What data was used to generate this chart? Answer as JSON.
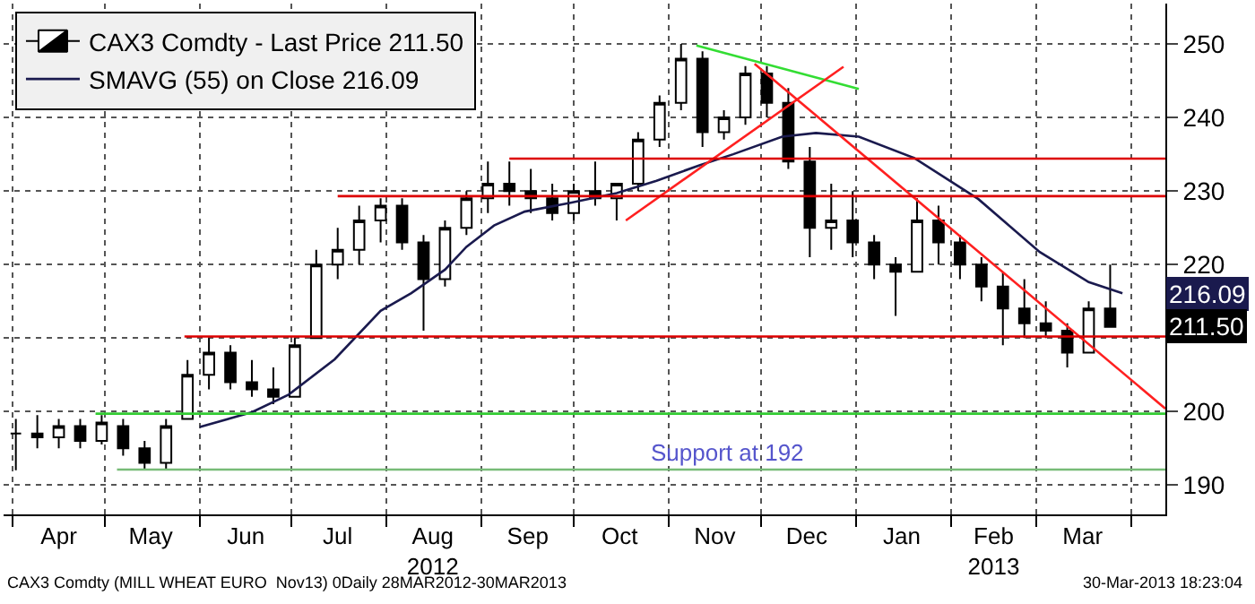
{
  "chart_data": {
    "type": "candlestick",
    "legend": "top left",
    "grid": true,
    "xlim": [
      "2012-03-29",
      "2013-04-12"
    ],
    "xticks": [
      {
        "value": "2012-04-01",
        "label": null
      },
      {
        "value": "2012-04-16",
        "label": "Apr"
      },
      {
        "value": "2012-05-01",
        "label": null
      },
      {
        "value": "2012-05-16",
        "label": "May"
      },
      {
        "value": "2012-06-01",
        "label": null
      },
      {
        "value": "2012-06-16",
        "label": "Jun"
      },
      {
        "value": "2012-07-01",
        "label": null
      },
      {
        "value": "2012-07-16",
        "label": "Jul"
      },
      {
        "value": "2012-08-01",
        "label": null
      },
      {
        "value": "2012-08-16",
        "label": "Aug\n2012"
      },
      {
        "value": "2012-09-01",
        "label": null
      },
      {
        "value": "2012-09-16",
        "label": "Sep"
      },
      {
        "value": "2012-10-01",
        "label": null
      },
      {
        "value": "2012-10-16",
        "label": "Oct"
      },
      {
        "value": "2012-11-01",
        "label": null
      },
      {
        "value": "2012-11-16",
        "label": "Nov"
      },
      {
        "value": "2012-12-01",
        "label": null
      },
      {
        "value": "2012-12-16",
        "label": "Dec"
      },
      {
        "value": "2013-01-01",
        "label": null
      },
      {
        "value": "2013-01-16",
        "label": "Jan"
      },
      {
        "value": "2013-02-01",
        "label": null
      },
      {
        "value": "2013-02-15",
        "label": "Feb\n2013"
      },
      {
        "value": "2013-03-01",
        "label": null
      },
      {
        "value": "2013-03-16",
        "label": "Mar"
      },
      {
        "value": "2013-04-01",
        "label": null
      }
    ],
    "ylim": [
      186,
      255.5
    ],
    "yticks": [
      190,
      200,
      {
        "value": 210,
        "label": null
      },
      220,
      230,
      240,
      250
    ],
    "series": [
      {
        "type": "candlestick",
        "name": "CAX3 Comdty - Last Price 211.50",
        "color": "#000000",
        "x": [
          "2012-04-02",
          "2012-04-09",
          "2012-04-16",
          "2012-04-23",
          "2012-04-30",
          "2012-05-07",
          "2012-05-14",
          "2012-05-21",
          "2012-05-28",
          "2012-06-04",
          "2012-06-11",
          "2012-06-18",
          "2012-06-25",
          "2012-07-02",
          "2012-07-09",
          "2012-07-16",
          "2012-07-23",
          "2012-07-30",
          "2012-08-06",
          "2012-08-13",
          "2012-08-20",
          "2012-08-27",
          "2012-09-03",
          "2012-09-10",
          "2012-09-17",
          "2012-09-24",
          "2012-10-01",
          "2012-10-08",
          "2012-10-15",
          "2012-10-22",
          "2012-10-29",
          "2012-11-05",
          "2012-11-12",
          "2012-11-19",
          "2012-11-26",
          "2012-12-03",
          "2012-12-10",
          "2012-12-17",
          "2012-12-24",
          "2012-12-31",
          "2013-01-07",
          "2013-01-14",
          "2013-01-21",
          "2013-01-28",
          "2013-02-04",
          "2013-02-11",
          "2013-02-18",
          "2013-02-25",
          "2013-03-04",
          "2013-03-11",
          "2013-03-18",
          "2013-03-25"
        ],
        "ohlc": [
          [
            197,
            199,
            192,
            197
          ],
          [
            197,
            199.5,
            195,
            196.5
          ],
          [
            196.5,
            199,
            195,
            198
          ],
          [
            198,
            199,
            195,
            196
          ],
          [
            196,
            199.5,
            195.5,
            198.5
          ],
          [
            198,
            199,
            194,
            195
          ],
          [
            195,
            196,
            192,
            193
          ],
          [
            193,
            199,
            192,
            198
          ],
          [
            199,
            207,
            199,
            205
          ],
          [
            205,
            210,
            203,
            208
          ],
          [
            208,
            209,
            203,
            204
          ],
          [
            204,
            207,
            202,
            203
          ],
          [
            203,
            206,
            201,
            202
          ],
          [
            202,
            210,
            202,
            209
          ],
          [
            210,
            222,
            210,
            220
          ],
          [
            220,
            225,
            218,
            222
          ],
          [
            222,
            228,
            220,
            226
          ],
          [
            226,
            229,
            223,
            228
          ],
          [
            228,
            229,
            222,
            223
          ],
          [
            223,
            224,
            211,
            218
          ],
          [
            218,
            226,
            217,
            225
          ],
          [
            225,
            230,
            224,
            229
          ],
          [
            229,
            234,
            227,
            231
          ],
          [
            231,
            234,
            228,
            230
          ],
          [
            230,
            233,
            227,
            229
          ],
          [
            229,
            231,
            226,
            227
          ],
          [
            227,
            231,
            226,
            230
          ],
          [
            230,
            234,
            228,
            229
          ],
          [
            229,
            231,
            226,
            231
          ],
          [
            231,
            238,
            230,
            237
          ],
          [
            237,
            243,
            236,
            242
          ],
          [
            242,
            250,
            241,
            248
          ],
          [
            248,
            249,
            236,
            238
          ],
          [
            238,
            241,
            237,
            240
          ],
          [
            240,
            247,
            239,
            246
          ],
          [
            246,
            247,
            240,
            242
          ],
          [
            242,
            244,
            233,
            234
          ],
          [
            234,
            236,
            221,
            225
          ],
          [
            225,
            231,
            222,
            226
          ],
          [
            226,
            230,
            221,
            223
          ],
          [
            223,
            224,
            218,
            220
          ],
          [
            220,
            221,
            213,
            219
          ],
          [
            219,
            229,
            219,
            226
          ],
          [
            226,
            228,
            220,
            223
          ],
          [
            223,
            224,
            218,
            220
          ],
          [
            220,
            221,
            215,
            217
          ],
          [
            217,
            219,
            209,
            214
          ],
          [
            214,
            218,
            210,
            212
          ],
          [
            212,
            215,
            210,
            211
          ],
          [
            211,
            212,
            206,
            208
          ],
          [
            208,
            215,
            208,
            214
          ],
          [
            214,
            220,
            211.5,
            211.5
          ]
        ]
      },
      {
        "type": "line",
        "name": "SMAVG (55) on Close 216.09",
        "color": "#1a1a4e",
        "x": [
          "2012-06-01",
          "2012-06-18",
          "2012-06-30",
          "2012-07-15",
          "2012-07-30",
          "2012-08-09",
          "2012-08-20",
          "2012-08-27",
          "2012-09-05",
          "2012-09-15",
          "2012-09-30",
          "2012-10-15",
          "2012-10-28",
          "2012-11-11",
          "2012-11-22",
          "2012-12-08",
          "2012-12-19",
          "2013-01-02",
          "2013-01-20",
          "2013-02-10",
          "2013-03-02",
          "2013-03-18",
          "2013-03-29"
        ],
        "values": [
          197.9,
          199.9,
          202.3,
          207.1,
          213.7,
          216.1,
          219.3,
          222.4,
          225.3,
          227.2,
          228.4,
          229.7,
          231.4,
          233.5,
          235.0,
          237.4,
          237.9,
          237.4,
          234.5,
          228.9,
          221.7,
          217.6,
          216.1
        ]
      },
      {
        "type": "line",
        "color": "#33dd33",
        "x": [
          "2012-11-10",
          "2013-01-02"
        ],
        "values": [
          249.8,
          243.9
        ]
      },
      {
        "type": "line",
        "color": "#ff2020",
        "x": [
          "2012-10-18",
          "2012-12-28"
        ],
        "values": [
          226.0,
          246.9
        ]
      },
      {
        "type": "line",
        "color": "#ff2020",
        "x": [
          "2012-11-29",
          "2013-04-12"
        ],
        "values": [
          247.3,
          200.4
        ]
      },
      {
        "type": "line",
        "color": "#dd0000",
        "x": [
          "2012-09-10",
          "2013-04-12"
        ],
        "values": [
          234.4,
          234.4
        ]
      },
      {
        "type": "line",
        "color": "#dd0000",
        "x": [
          "2012-07-16",
          "2013-04-12"
        ],
        "values": [
          229.3,
          229.3
        ]
      },
      {
        "type": "line",
        "color": "#dd0000",
        "x": [
          "2012-05-27",
          "2013-04-12"
        ],
        "values": [
          210.2,
          210.2
        ]
      },
      {
        "type": "line",
        "color": "#33cc33",
        "x": [
          "2012-04-28",
          "2013-04-12"
        ],
        "values": [
          199.7,
          199.7
        ]
      },
      {
        "type": "line",
        "color": "#77bb77",
        "x": [
          "2012-05-05",
          "2013-04-12"
        ],
        "values": [
          192.1,
          192.1
        ]
      }
    ],
    "annotations": [
      {
        "text": "Support at 192",
        "x": "2012-11-20",
        "y": 192.1
      },
      {
        "text": "216.09",
        "x": "2013-03-29",
        "y": 216.1
      },
      {
        "text": "211.50",
        "x": "2013-03-25",
        "y": 211.5
      },
      "CAX3 Comdty (MILL WHEAT EURO  Nov13) 0Daily 28MAR2012-30MAR2013",
      "30-Mar-2013 18:23:04"
    ]
  }
}
